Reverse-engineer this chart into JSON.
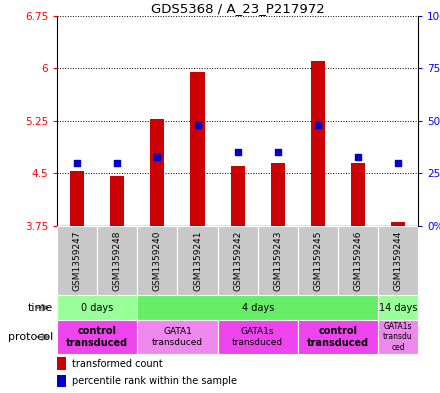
{
  "title": "GDS5368 / A_23_P217972",
  "samples": [
    "GSM1359247",
    "GSM1359248",
    "GSM1359240",
    "GSM1359241",
    "GSM1359242",
    "GSM1359243",
    "GSM1359245",
    "GSM1359246",
    "GSM1359244"
  ],
  "transformed_counts": [
    4.53,
    4.47,
    5.28,
    5.95,
    4.6,
    4.65,
    6.1,
    4.65,
    3.8
  ],
  "percentile_ranks": [
    30,
    30,
    33,
    48,
    35,
    35,
    48,
    33,
    30
  ],
  "ylim_left": [
    3.75,
    6.75
  ],
  "ylim_right": [
    0,
    100
  ],
  "yticks_left": [
    3.75,
    4.5,
    5.25,
    6.0,
    6.75
  ],
  "yticks_right": [
    0,
    25,
    50,
    75,
    100
  ],
  "ytick_labels_left": [
    "3.75",
    "4.5",
    "5.25",
    "6",
    "6.75"
  ],
  "ytick_labels_right": [
    "0%",
    "25%",
    "50%",
    "75%",
    "100%"
  ],
  "bar_color": "#cc0000",
  "dot_color": "#0000cc",
  "bar_bottom": 3.75,
  "sample_bg_color": "#c8c8c8",
  "time_groups": [
    {
      "label": "0 days",
      "start": 0,
      "end": 2,
      "color": "#99ff99"
    },
    {
      "label": "4 days",
      "start": 2,
      "end": 8,
      "color": "#66ee66"
    },
    {
      "label": "14 days",
      "start": 8,
      "end": 9,
      "color": "#99ff99"
    }
  ],
  "protocol_groups": [
    {
      "label": "control\ntransduced",
      "start": 0,
      "end": 2,
      "color": "#ee44ee",
      "bold": true,
      "fontsize": 7
    },
    {
      "label": "GATA1\ntransduced",
      "start": 2,
      "end": 4,
      "color": "#ee88ee",
      "bold": false,
      "fontsize": 6.5
    },
    {
      "label": "GATA1s\ntransduced",
      "start": 4,
      "end": 6,
      "color": "#ee44ee",
      "bold": false,
      "fontsize": 6.5
    },
    {
      "label": "control\ntransduced",
      "start": 6,
      "end": 8,
      "color": "#ee44ee",
      "bold": true,
      "fontsize": 7
    },
    {
      "label": "GATA1s\ntransdu\nced",
      "start": 8,
      "end": 9,
      "color": "#ee88ee",
      "bold": false,
      "fontsize": 5.5
    }
  ],
  "legend_items": [
    {
      "color": "#cc0000",
      "label": "transformed count"
    },
    {
      "color": "#0000cc",
      "label": "percentile rank within the sample"
    }
  ]
}
